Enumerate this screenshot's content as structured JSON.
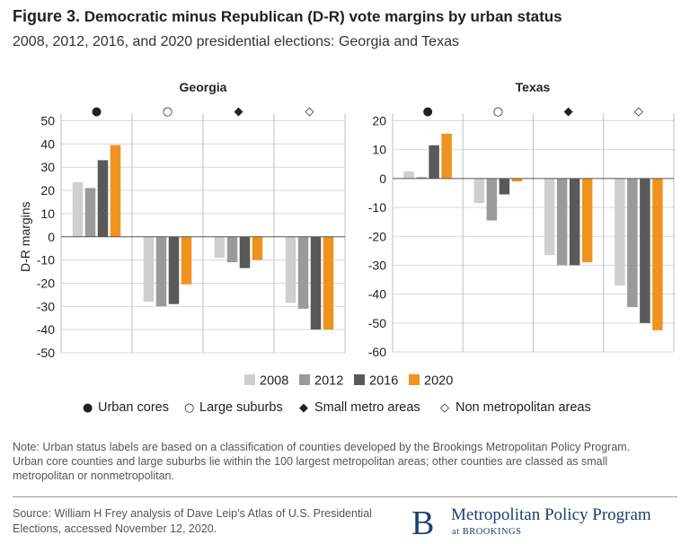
{
  "header": {
    "title_lead": "Figure 3.",
    "title_rest": "Democratic minus Republican (D-R) vote margins by urban status",
    "subtitle": "2008, 2012, 2016, and 2020 presidential elections: Georgia and Texas"
  },
  "colors": {
    "2008": "#cfcfcf",
    "2012": "#9a9a9a",
    "2016": "#595959",
    "2020": "#f0931e",
    "grid": "#d9d9d9",
    "divider": "#bfbfbf"
  },
  "chart_data": [
    {
      "type": "bar",
      "panel_title": "Georgia",
      "ylabel": "D-R margins",
      "ylim": [
        -50,
        50
      ],
      "yticks": [
        50,
        40,
        30,
        20,
        10,
        0,
        -10,
        -20,
        -30,
        -40,
        -50
      ],
      "grid": true,
      "groups": [
        "Urban cores",
        "Large suburbs",
        "Small metro areas",
        "Non metropolitan areas"
      ],
      "group_markers": [
        "●",
        "○",
        "◆",
        "◇"
      ],
      "series": [
        {
          "name": "2008",
          "values": [
            23.5,
            -28,
            -9,
            -28.5
          ]
        },
        {
          "name": "2012",
          "values": [
            21,
            -30,
            -11,
            -31
          ]
        },
        {
          "name": "2016",
          "values": [
            33,
            -29,
            -13.5,
            -40
          ]
        },
        {
          "name": "2020",
          "values": [
            39.5,
            -20.5,
            -10,
            -40
          ]
        }
      ]
    },
    {
      "type": "bar",
      "panel_title": "Texas",
      "ylabel": "",
      "ylim": [
        -60,
        20
      ],
      "yticks": [
        20,
        10,
        0,
        -10,
        -20,
        -30,
        -40,
        -50,
        -60
      ],
      "grid": true,
      "groups": [
        "Urban cores",
        "Large suburbs",
        "Small metro areas",
        "Non metropolitan areas"
      ],
      "group_markers": [
        "●",
        "○",
        "◆",
        "◇"
      ],
      "series": [
        {
          "name": "2008",
          "values": [
            2.5,
            -8.5,
            -26.5,
            -37
          ]
        },
        {
          "name": "2012",
          "values": [
            0.5,
            -14.5,
            -30,
            -44.5
          ]
        },
        {
          "name": "2016",
          "values": [
            11.5,
            -5.5,
            -30,
            -50
          ]
        },
        {
          "name": "2020",
          "values": [
            15.5,
            -1,
            -29,
            -52.5
          ]
        }
      ]
    }
  ],
  "legend": {
    "years": [
      "2008",
      "2012",
      "2016",
      "2020"
    ],
    "markers": [
      {
        "symbol": "●",
        "label": "Urban cores"
      },
      {
        "symbol": "○",
        "label": "Large suburbs"
      },
      {
        "symbol": "◆",
        "label": "Small metro areas"
      },
      {
        "symbol": "◇",
        "label": "Non metropolitan areas"
      }
    ]
  },
  "footer": {
    "note": "Note: Urban status labels are based on a classification of counties developed by the Brookings Metropolitan Policy Program. Urban core counties and large suburbs lie within the 100 largest metropolitan areas; other counties are classed as small metropolitan or nonmetropolitan.",
    "source": "Source: William H Frey analysis of Dave Leip’s Atlas of U.S. Presidential Elections, accessed November 12, 2020.",
    "logo_letter": "B",
    "logo_name": "Metropolitan Policy Program",
    "logo_sub": "at BROOKINGS"
  }
}
